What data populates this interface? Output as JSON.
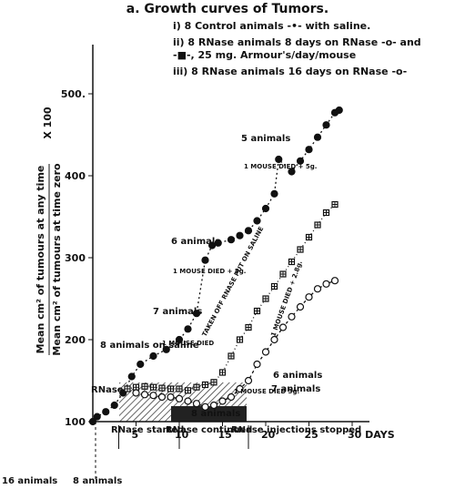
{
  "chart_data": {
    "type": "line",
    "title": "a. Growth curves of Tumors.",
    "y_label": [
      "Mean cm² of tumours at any time",
      "Mean cm² of tumours at time zero",
      "X 100"
    ],
    "xlim": [
      0,
      32
    ],
    "ylim": [
      100,
      560
    ],
    "xticks": [
      5,
      10,
      15,
      20,
      25,
      {
        "value": 30,
        "label": "30 DAYS"
      }
    ],
    "yticks": [
      100,
      200,
      300,
      400,
      {
        "value": 500,
        "label": "500."
      }
    ],
    "grid": false,
    "series": [
      {
        "name": "i) 8 Control animals -•- with saline.",
        "color": "#111",
        "marker": "filled-circle",
        "dash": "2,3",
        "x": [
          0,
          0.5,
          1.5,
          2.5,
          3.5,
          4.5,
          5.5,
          7,
          8.5,
          10,
          11,
          12,
          13,
          13.8,
          14.5,
          16,
          17,
          18,
          19,
          20,
          21,
          21.5,
          23,
          24,
          25,
          26,
          27,
          28,
          28.5
        ],
        "values": [
          100,
          106,
          112,
          120,
          135,
          155,
          170,
          180,
          188,
          200,
          213,
          232,
          297,
          315,
          318,
          322,
          327,
          333,
          345,
          360,
          378,
          420,
          405,
          418,
          432,
          447,
          462,
          477,
          480
        ]
      },
      {
        "name": "ii) 8 RNase animals 8 days on RNase -o- and -■-, 25 mg. Armour's/day/mouse",
        "color": "#111",
        "marker": "crossed-square",
        "dash": "1,3",
        "x": [
          4,
          5,
          6,
          7,
          8,
          9,
          10,
          11,
          12,
          13,
          14,
          15,
          16,
          17,
          18,
          19,
          20,
          21,
          22,
          23,
          24,
          25,
          26,
          27,
          28
        ],
        "values": [
          140,
          142,
          143,
          142,
          141,
          140,
          140,
          138,
          142,
          145,
          148,
          160,
          180,
          200,
          215,
          235,
          250,
          265,
          280,
          295,
          310,
          325,
          340,
          355,
          365
        ]
      },
      {
        "name": "iii) 8 RNase animals 16 days on RNase -o-",
        "color": "#111",
        "marker": "open-circle",
        "dash": "3,3",
        "x": [
          5,
          6,
          7,
          8,
          9,
          10,
          11,
          12,
          13,
          14,
          15,
          16,
          17,
          18,
          19,
          20,
          21,
          22,
          23,
          24,
          25,
          26,
          27,
          28
        ],
        "values": [
          135,
          133,
          132,
          130,
          130,
          128,
          125,
          122,
          118,
          120,
          125,
          130,
          140,
          150,
          170,
          185,
          200,
          215,
          228,
          240,
          252,
          262,
          268,
          272
        ]
      }
    ],
    "annotations": [
      "5 animals",
      "1 MOUSE DIED + 5g.",
      "6 animals",
      "1 MOUSE DIED + 5g.",
      "7 animals",
      "1 MOUSE DIED",
      "8 animals on saline",
      "RNase",
      "TAKEN OFF RNASE PUT ON SALINE",
      "1 MOUSE DIED + 2.8g.",
      "6 animals",
      "7 animals",
      "1 MOUSE DIED 3g.",
      "8 animals",
      "RNase started",
      "RNase continued",
      "RNase injections stopped",
      "16 animals",
      "8 animals"
    ]
  }
}
